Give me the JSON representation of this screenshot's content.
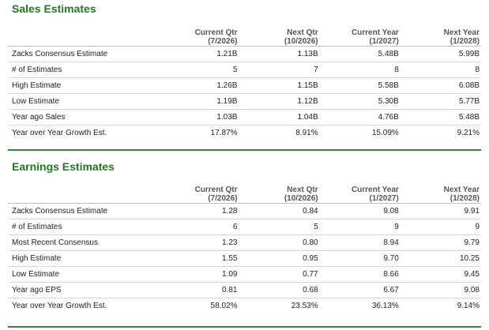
{
  "sales": {
    "title": "Sales Estimates",
    "headers": [
      {
        "line1": "Current Qtr",
        "line2": "(7/2026)"
      },
      {
        "line1": "Next Qtr",
        "line2": "(10/2026)"
      },
      {
        "line1": "Current Year",
        "line2": "(1/2027)"
      },
      {
        "line1": "Next Year",
        "line2": "(1/2028)"
      }
    ],
    "rows": [
      {
        "label": "Zacks Consensus Estimate",
        "values": [
          "1.21B",
          "1.13B",
          "5.48B",
          "5.99B"
        ]
      },
      {
        "label": "# of Estimates",
        "values": [
          "5",
          "7",
          "8",
          "8"
        ]
      },
      {
        "label": "High Estimate",
        "values": [
          "1.26B",
          "1.15B",
          "5.58B",
          "6.08B"
        ]
      },
      {
        "label": "Low Estimate",
        "values": [
          "1.19B",
          "1.12B",
          "5.30B",
          "5.77B"
        ]
      },
      {
        "label": "Year ago Sales",
        "values": [
          "1.03B",
          "1.04B",
          "4.76B",
          "5.48B"
        ]
      },
      {
        "label": "Year over Year Growth Est.",
        "values": [
          "17.87%",
          "8.91%",
          "15.09%",
          "9.21%"
        ]
      }
    ]
  },
  "earnings": {
    "title": "Earnings Estimates",
    "headers": [
      {
        "line1": "Current Qtr",
        "line2": "(7/2026)"
      },
      {
        "line1": "Next Qtr",
        "line2": "(10/2026)"
      },
      {
        "line1": "Current Year",
        "line2": "(1/2027)"
      },
      {
        "line1": "Next Year",
        "line2": "(1/2028)"
      }
    ],
    "rows": [
      {
        "label": "Zacks Consensus Estimate",
        "values": [
          "1.28",
          "0.84",
          "9.08",
          "9.91"
        ]
      },
      {
        "label": "# of Estimates",
        "values": [
          "6",
          "5",
          "9",
          "9"
        ]
      },
      {
        "label": "Most Recent Consensus",
        "values": [
          "1.23",
          "0.80",
          "8.94",
          "9.79"
        ]
      },
      {
        "label": "High Estimate",
        "values": [
          "1.55",
          "0.95",
          "9.70",
          "10.25"
        ]
      },
      {
        "label": "Low Estimate",
        "values": [
          "1.09",
          "0.77",
          "8.66",
          "9.45"
        ]
      },
      {
        "label": "Year ago EPS",
        "values": [
          "0.81",
          "0.68",
          "6.67",
          "9.08"
        ]
      },
      {
        "label": "Year over Year Growth Est.",
        "values": [
          "58.02%",
          "23.53%",
          "36.13%",
          "9.14%"
        ]
      }
    ]
  },
  "colors": {
    "section_title": "#1f7a1f",
    "rule": "#2e8b2e"
  }
}
